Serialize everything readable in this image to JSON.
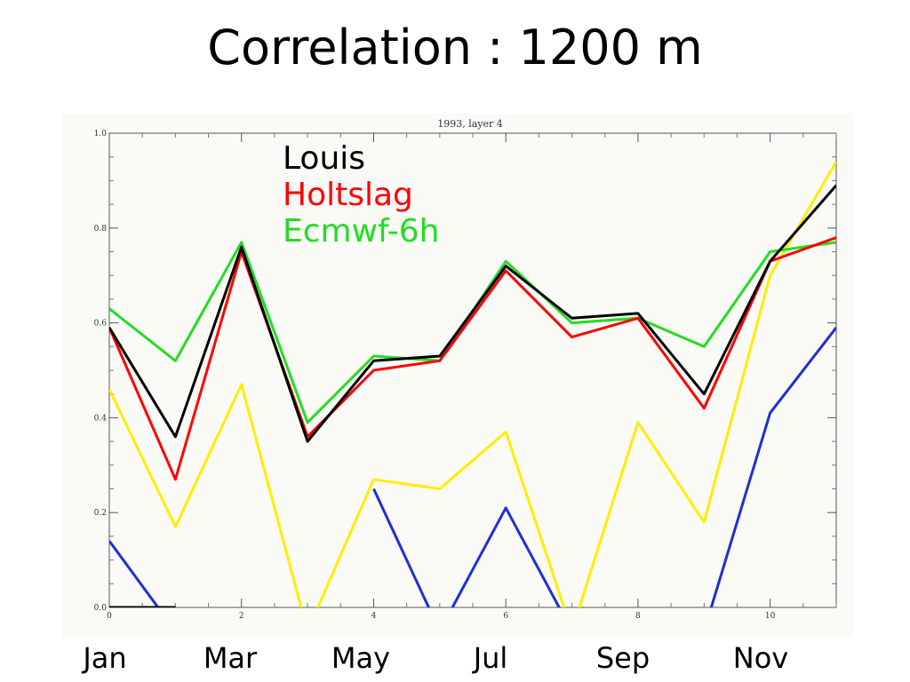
{
  "title": "Correlation : 1200 m",
  "legend": [
    {
      "label": "Louis",
      "color": "#000000"
    },
    {
      "label": "Holtslag",
      "color": "#ff0000"
    },
    {
      "label": "Ecmwf-6h",
      "color": "#22dd22"
    }
  ],
  "months": [
    "Jan",
    "Mar",
    "May",
    "Jul",
    "Sep",
    "Nov"
  ],
  "chart_data": {
    "type": "line",
    "title": "1993, layer 4",
    "xlabel": "",
    "ylabel": "",
    "xlim": [
      0,
      11
    ],
    "ylim": [
      0.0,
      1.0
    ],
    "x_ticks": [
      0,
      2,
      4,
      6,
      8,
      10
    ],
    "y_ticks": [
      "0.0",
      "0.2",
      "0.4",
      "0.6",
      "0.8",
      "1.0"
    ],
    "grid": false,
    "x": [
      0,
      1,
      2,
      3,
      4,
      5,
      6,
      7,
      8,
      9,
      10,
      11
    ],
    "series": [
      {
        "color": "#000000",
        "values": [
          0.59,
          0.36,
          0.76,
          0.35,
          0.52,
          0.53,
          0.72,
          0.61,
          0.62,
          0.45,
          0.73,
          0.89
        ]
      },
      {
        "color": "#ff0000",
        "values": [
          0.59,
          0.27,
          0.75,
          0.36,
          0.5,
          0.52,
          0.71,
          0.57,
          0.61,
          0.42,
          0.73,
          0.78
        ]
      },
      {
        "color": "#22dd22",
        "values": [
          0.63,
          0.52,
          0.77,
          0.39,
          0.53,
          0.52,
          0.73,
          0.6,
          0.61,
          0.55,
          0.75,
          0.77
        ]
      },
      {
        "color": "#ffee00",
        "values": [
          0.46,
          0.17,
          0.47,
          -0.05,
          0.27,
          0.25,
          0.37,
          -0.05,
          0.39,
          0.18,
          0.7,
          0.94
        ]
      },
      {
        "color": "#1e2fd6",
        "values": [
          0.14,
          -0.05,
          null,
          null,
          0.25,
          -0.05,
          0.21,
          -0.05,
          null,
          -0.05,
          0.41,
          0.59
        ]
      }
    ],
    "baseline": {
      "color": "#000000",
      "x": [
        0,
        1
      ],
      "values": [
        0.0,
        0.0
      ]
    }
  }
}
